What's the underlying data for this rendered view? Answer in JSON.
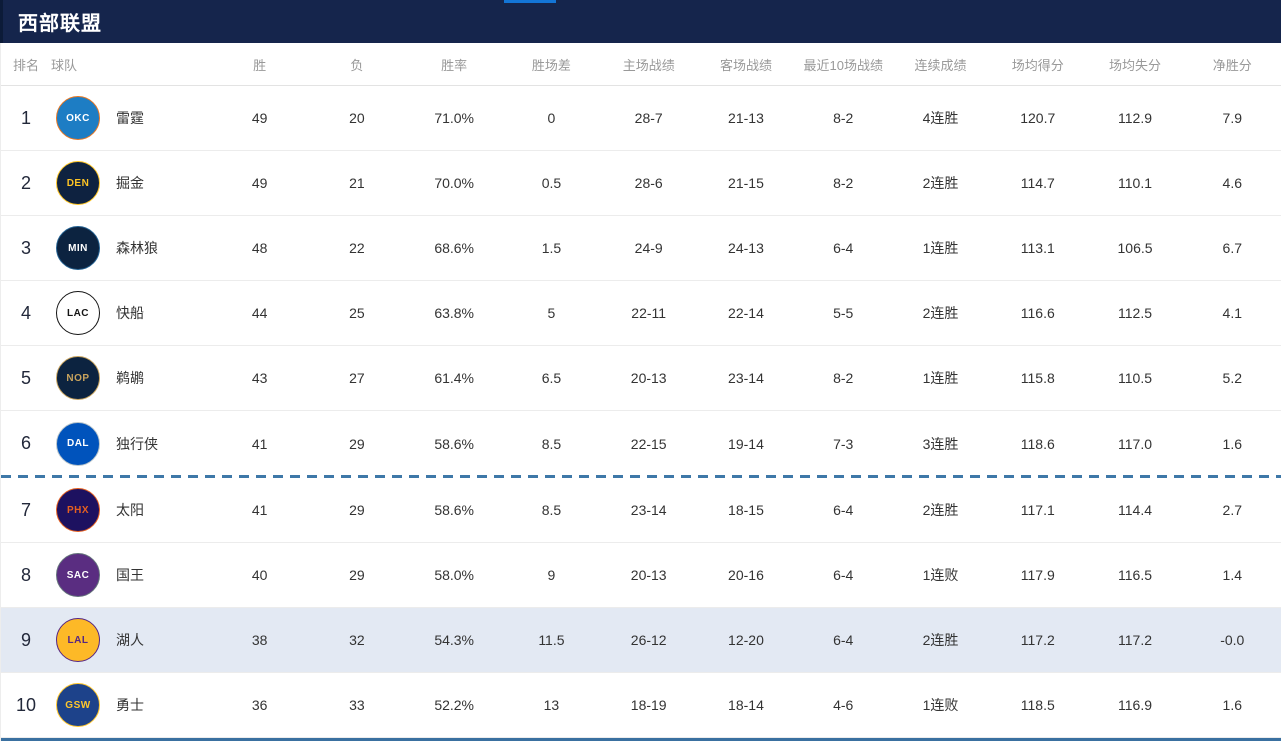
{
  "page": {
    "title": "西部联盟",
    "colors": {
      "header_bg": "#15254C",
      "tab_indicator": "#1375D6",
      "cutoff_line": "#3E78A8",
      "highlight_row": "#E3E9F3"
    }
  },
  "table": {
    "columns": [
      "排名",
      "球队",
      "胜",
      "负",
      "胜率",
      "胜场差",
      "主场战绩",
      "客场战绩",
      "最近10场战绩",
      "连续成绩",
      "场均得分",
      "场均失分",
      "净胜分"
    ],
    "playoff_cutoff_after_index": 6,
    "rows": [
      {
        "rank": "1",
        "team": "雷霆",
        "abbr": "OKC",
        "logo_bg": "#1D7DC4",
        "logo_fg": "#FFFFFF",
        "logo_border": "#E87722",
        "wins": "49",
        "losses": "20",
        "win_pct": "71.0%",
        "gb": "0",
        "home": "28-7",
        "away": "21-13",
        "last10": "8-2",
        "streak": "4连胜",
        "ppg": "120.7",
        "opp_ppg": "112.9",
        "net": "7.9",
        "highlighted": false
      },
      {
        "rank": "2",
        "team": "掘金",
        "abbr": "DEN",
        "logo_bg": "#0E2240",
        "logo_fg": "#FEC524",
        "logo_border": "#FEC524",
        "wins": "49",
        "losses": "21",
        "win_pct": "70.0%",
        "gb": "0.5",
        "home": "28-6",
        "away": "21-15",
        "last10": "8-2",
        "streak": "2连胜",
        "ppg": "114.7",
        "opp_ppg": "110.1",
        "net": "4.6",
        "highlighted": false
      },
      {
        "rank": "3",
        "team": "森林狼",
        "abbr": "MIN",
        "logo_bg": "#0C2340",
        "logo_fg": "#FFFFFF",
        "logo_border": "#236192",
        "wins": "48",
        "losses": "22",
        "win_pct": "68.6%",
        "gb": "1.5",
        "home": "24-9",
        "away": "24-13",
        "last10": "6-4",
        "streak": "1连胜",
        "ppg": "113.1",
        "opp_ppg": "106.5",
        "net": "6.7",
        "highlighted": false
      },
      {
        "rank": "4",
        "team": "快船",
        "abbr": "LAC",
        "logo_bg": "#FFFFFF",
        "logo_fg": "#141414",
        "logo_border": "#141414",
        "wins": "44",
        "losses": "25",
        "win_pct": "63.8%",
        "gb": "5",
        "home": "22-11",
        "away": "22-14",
        "last10": "5-5",
        "streak": "2连胜",
        "ppg": "116.6",
        "opp_ppg": "112.5",
        "net": "4.1",
        "highlighted": false
      },
      {
        "rank": "5",
        "team": "鹈鹕",
        "abbr": "NOP",
        "logo_bg": "#0C2340",
        "logo_fg": "#C8A35D",
        "logo_border": "#C8A35D",
        "wins": "43",
        "losses": "27",
        "win_pct": "61.4%",
        "gb": "6.5",
        "home": "20-13",
        "away": "23-14",
        "last10": "8-2",
        "streak": "1连胜",
        "ppg": "115.8",
        "opp_ppg": "110.5",
        "net": "5.2",
        "highlighted": false
      },
      {
        "rank": "6",
        "team": "独行侠",
        "abbr": "DAL",
        "logo_bg": "#0053BC",
        "logo_fg": "#FFFFFF",
        "logo_border": "#B8C4CA",
        "wins": "41",
        "losses": "29",
        "win_pct": "58.6%",
        "gb": "8.5",
        "home": "22-15",
        "away": "19-14",
        "last10": "7-3",
        "streak": "3连胜",
        "ppg": "118.6",
        "opp_ppg": "117.0",
        "net": "1.6",
        "highlighted": false
      },
      {
        "rank": "7",
        "team": "太阳",
        "abbr": "PHX",
        "logo_bg": "#1D1160",
        "logo_fg": "#E56020",
        "logo_border": "#E56020",
        "wins": "41",
        "losses": "29",
        "win_pct": "58.6%",
        "gb": "8.5",
        "home": "23-14",
        "away": "18-15",
        "last10": "6-4",
        "streak": "2连胜",
        "ppg": "117.1",
        "opp_ppg": "114.4",
        "net": "2.7",
        "highlighted": false
      },
      {
        "rank": "8",
        "team": "国王",
        "abbr": "SAC",
        "logo_bg": "#5A2D81",
        "logo_fg": "#FFFFFF",
        "logo_border": "#63727A",
        "wins": "40",
        "losses": "29",
        "win_pct": "58.0%",
        "gb": "9",
        "home": "20-13",
        "away": "20-16",
        "last10": "6-4",
        "streak": "1连败",
        "ppg": "117.9",
        "opp_ppg": "116.5",
        "net": "1.4",
        "highlighted": false
      },
      {
        "rank": "9",
        "team": "湖人",
        "abbr": "LAL",
        "logo_bg": "#FDB927",
        "logo_fg": "#552583",
        "logo_border": "#552583",
        "wins": "38",
        "losses": "32",
        "win_pct": "54.3%",
        "gb": "11.5",
        "home": "26-12",
        "away": "12-20",
        "last10": "6-4",
        "streak": "2连胜",
        "ppg": "117.2",
        "opp_ppg": "117.2",
        "net": "-0.0",
        "highlighted": true
      },
      {
        "rank": "10",
        "team": "勇士",
        "abbr": "GSW",
        "logo_bg": "#1D428A",
        "logo_fg": "#FFC72C",
        "logo_border": "#FFC72C",
        "wins": "36",
        "losses": "33",
        "win_pct": "52.2%",
        "gb": "13",
        "home": "18-19",
        "away": "18-14",
        "last10": "4-6",
        "streak": "1连败",
        "ppg": "118.5",
        "opp_ppg": "116.9",
        "net": "1.6",
        "highlighted": false
      }
    ]
  }
}
